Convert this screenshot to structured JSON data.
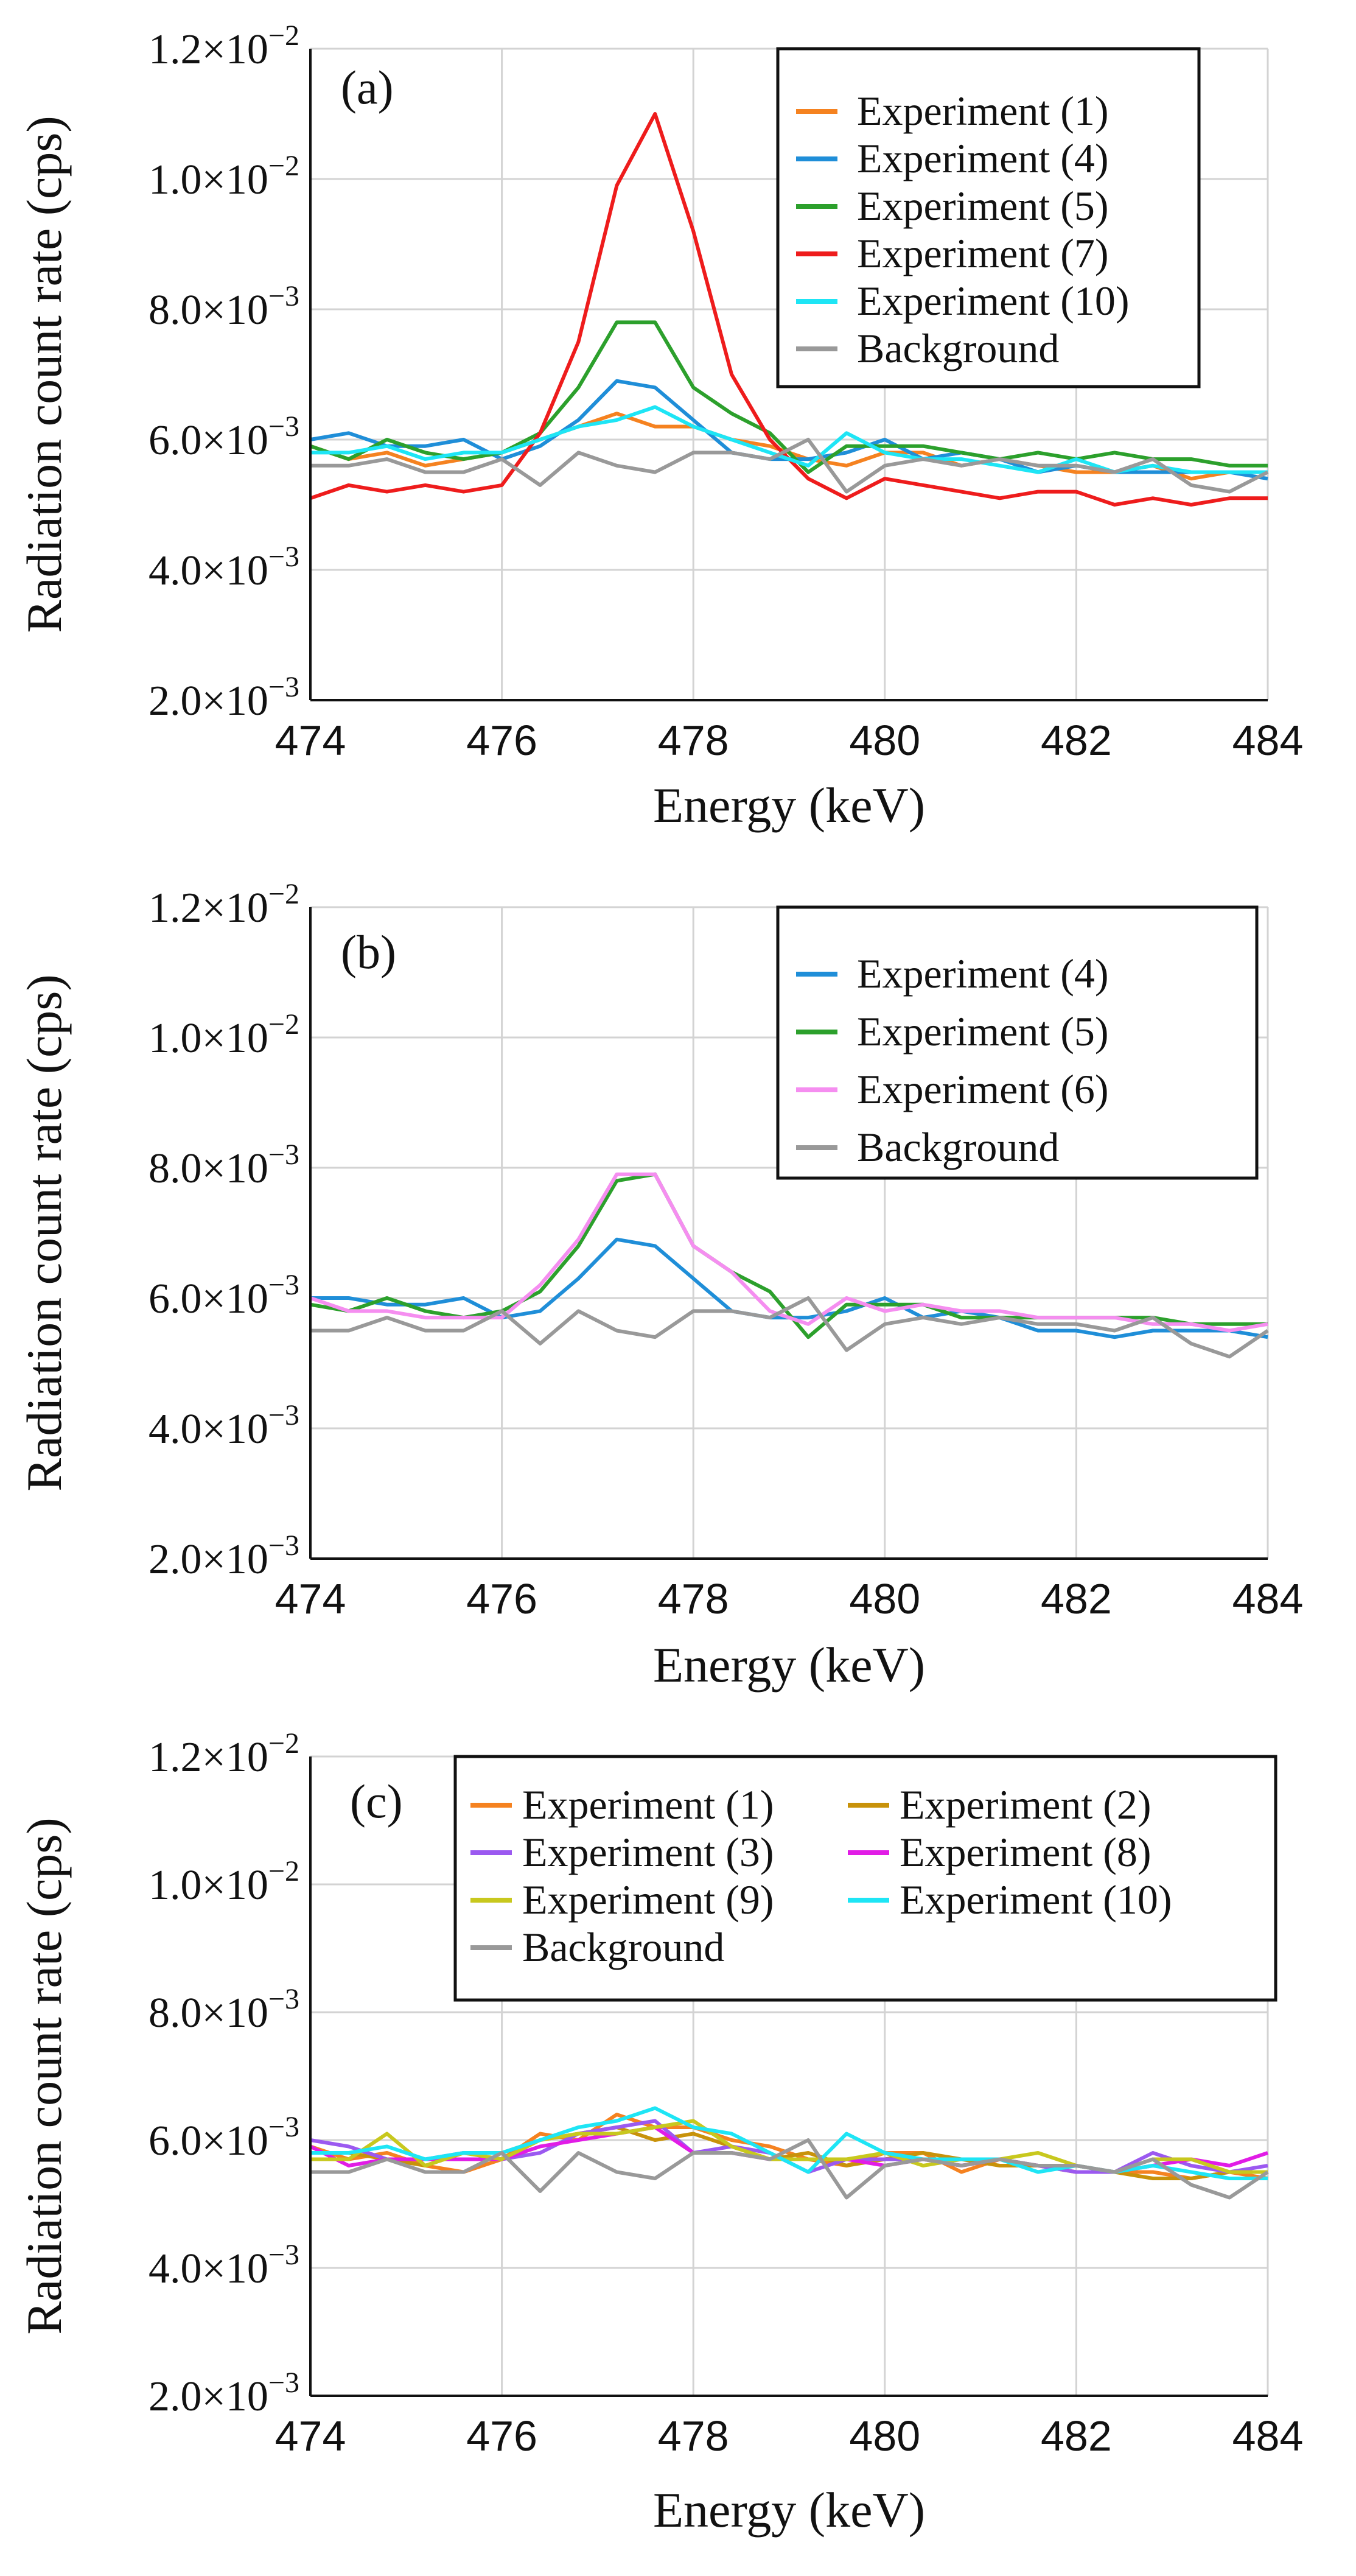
{
  "chart_data": [
    {
      "type": "line",
      "panel_label": "(a)",
      "xlabel": "Energy (keV)",
      "ylabel": "Radiation count rate (cps)",
      "xlim": [
        474,
        484
      ],
      "ylim": [
        0.002,
        0.012
      ],
      "xticks": [
        "474",
        "476",
        "478",
        "480",
        "482",
        "484"
      ],
      "yticks": [
        {
          "mant": "2.0×10",
          "exp": "−3"
        },
        {
          "mant": "4.0×10",
          "exp": "−3"
        },
        {
          "mant": "6.0×10",
          "exp": "−3"
        },
        {
          "mant": "8.0×10",
          "exp": "−3"
        },
        {
          "mant": "1.0×10",
          "exp": "−2"
        },
        {
          "mant": "1.2×10",
          "exp": "−2"
        }
      ],
      "grid": true,
      "legend_columns": 1,
      "x": [
        474.0,
        474.4,
        474.8,
        475.2,
        475.6,
        476.0,
        476.4,
        476.8,
        477.2,
        477.6,
        478.0,
        478.4,
        478.8,
        479.2,
        479.6,
        480.0,
        480.4,
        480.8,
        481.2,
        481.6,
        482.0,
        482.4,
        482.8,
        483.2,
        483.6,
        484.0
      ],
      "series": [
        {
          "name": "Experiment (1)",
          "color": "#f58220",
          "values": [
            0.0059,
            0.0057,
            0.0058,
            0.0056,
            0.0057,
            0.0058,
            0.006,
            0.0062,
            0.0064,
            0.0062,
            0.0062,
            0.006,
            0.0059,
            0.0057,
            0.0056,
            0.0058,
            0.0058,
            0.0056,
            0.0057,
            0.0056,
            0.0055,
            0.0055,
            0.0056,
            0.0054,
            0.0055,
            0.0055
          ]
        },
        {
          "name": "Experiment (4)",
          "color": "#1f8ed8",
          "values": [
            0.006,
            0.0061,
            0.0059,
            0.0059,
            0.006,
            0.0057,
            0.0059,
            0.0063,
            0.0069,
            0.0068,
            0.0063,
            0.0058,
            0.0057,
            0.0057,
            0.0058,
            0.006,
            0.0057,
            0.0058,
            0.0057,
            0.0055,
            0.0056,
            0.0055,
            0.0055,
            0.0055,
            0.0055,
            0.0054
          ]
        },
        {
          "name": "Experiment (5)",
          "color": "#2ca02c",
          "values": [
            0.0059,
            0.0057,
            0.006,
            0.0058,
            0.0057,
            0.0058,
            0.0061,
            0.0068,
            0.0078,
            0.0078,
            0.0068,
            0.0064,
            0.0061,
            0.0055,
            0.0059,
            0.0059,
            0.0059,
            0.0058,
            0.0057,
            0.0058,
            0.0057,
            0.0058,
            0.0057,
            0.0057,
            0.0056,
            0.0056
          ]
        },
        {
          "name": "Experiment (7)",
          "color": "#ee1c1c",
          "values": [
            0.0051,
            0.0053,
            0.0052,
            0.0053,
            0.0052,
            0.0053,
            0.0061,
            0.0075,
            0.0099,
            0.011,
            0.0092,
            0.007,
            0.006,
            0.0054,
            0.0051,
            0.0054,
            0.0053,
            0.0052,
            0.0051,
            0.0052,
            0.0052,
            0.005,
            0.0051,
            0.005,
            0.0051,
            0.0051
          ]
        },
        {
          "name": "Experiment (10)",
          "color": "#1ee5f5",
          "values": [
            0.0058,
            0.0058,
            0.0059,
            0.0057,
            0.0058,
            0.0058,
            0.006,
            0.0062,
            0.0063,
            0.0065,
            0.0062,
            0.006,
            0.0058,
            0.0056,
            0.0061,
            0.0058,
            0.0057,
            0.0057,
            0.0056,
            0.0055,
            0.0057,
            0.0055,
            0.0056,
            0.0055,
            0.0055,
            0.0055
          ]
        },
        {
          "name": "Background",
          "color": "#999999",
          "values": [
            0.0056,
            0.0056,
            0.0057,
            0.0055,
            0.0055,
            0.0057,
            0.0053,
            0.0058,
            0.0056,
            0.0055,
            0.0058,
            0.0058,
            0.0057,
            0.006,
            0.0052,
            0.0056,
            0.0057,
            0.0056,
            0.0057,
            0.0056,
            0.0056,
            0.0055,
            0.0057,
            0.0053,
            0.0052,
            0.0055
          ]
        }
      ]
    },
    {
      "type": "line",
      "panel_label": "(b)",
      "xlabel": "Energy (keV)",
      "ylabel": "Radiation count rate (cps)",
      "xlim": [
        474,
        484
      ],
      "ylim": [
        0.002,
        0.012
      ],
      "xticks": [
        "474",
        "476",
        "478",
        "480",
        "482",
        "484"
      ],
      "yticks": [
        {
          "mant": "2.0×10",
          "exp": "−3"
        },
        {
          "mant": "4.0×10",
          "exp": "−3"
        },
        {
          "mant": "6.0×10",
          "exp": "−3"
        },
        {
          "mant": "8.0×10",
          "exp": "−3"
        },
        {
          "mant": "1.0×10",
          "exp": "−2"
        },
        {
          "mant": "1.2×10",
          "exp": "−2"
        }
      ],
      "grid": true,
      "legend_columns": 1,
      "x": [
        474.0,
        474.4,
        474.8,
        475.2,
        475.6,
        476.0,
        476.4,
        476.8,
        477.2,
        477.6,
        478.0,
        478.4,
        478.8,
        479.2,
        479.6,
        480.0,
        480.4,
        480.8,
        481.2,
        481.6,
        482.0,
        482.4,
        482.8,
        483.2,
        483.6,
        484.0
      ],
      "series": [
        {
          "name": "Experiment (4)",
          "color": "#1f8ed8",
          "values": [
            0.006,
            0.006,
            0.0059,
            0.0059,
            0.006,
            0.0057,
            0.0058,
            0.0063,
            0.0069,
            0.0068,
            0.0063,
            0.0058,
            0.0057,
            0.0057,
            0.0058,
            0.006,
            0.0057,
            0.0058,
            0.0057,
            0.0055,
            0.0055,
            0.0054,
            0.0055,
            0.0055,
            0.0055,
            0.0054
          ]
        },
        {
          "name": "Experiment (5)",
          "color": "#2ca02c",
          "values": [
            0.0059,
            0.0058,
            0.006,
            0.0058,
            0.0057,
            0.0058,
            0.0061,
            0.0068,
            0.0078,
            0.0079,
            0.0068,
            0.0064,
            0.0061,
            0.0054,
            0.0059,
            0.0059,
            0.0059,
            0.0057,
            0.0057,
            0.0057,
            0.0057,
            0.0057,
            0.0057,
            0.0056,
            0.0056,
            0.0056
          ]
        },
        {
          "name": "Experiment (6)",
          "color": "#f58ef0",
          "values": [
            0.006,
            0.0058,
            0.0058,
            0.0057,
            0.0057,
            0.0057,
            0.0062,
            0.0069,
            0.0079,
            0.0079,
            0.0068,
            0.0064,
            0.0058,
            0.0056,
            0.006,
            0.0058,
            0.0059,
            0.0058,
            0.0058,
            0.0057,
            0.0057,
            0.0057,
            0.0056,
            0.0056,
            0.0055,
            0.0056
          ]
        },
        {
          "name": "Background",
          "color": "#999999",
          "values": [
            0.0055,
            0.0055,
            0.0057,
            0.0055,
            0.0055,
            0.0058,
            0.0053,
            0.0058,
            0.0055,
            0.0054,
            0.0058,
            0.0058,
            0.0057,
            0.006,
            0.0052,
            0.0056,
            0.0057,
            0.0056,
            0.0057,
            0.0056,
            0.0056,
            0.0055,
            0.0057,
            0.0053,
            0.0051,
            0.0055
          ]
        }
      ]
    },
    {
      "type": "line",
      "panel_label": "(c)",
      "xlabel": "Energy (keV)",
      "ylabel": "Radiation count rate (cps)",
      "xlim": [
        474,
        484
      ],
      "ylim": [
        0.002,
        0.012
      ],
      "xticks": [
        "474",
        "476",
        "478",
        "480",
        "482",
        "484"
      ],
      "yticks": [
        {
          "mant": "2.0×10",
          "exp": "−3"
        },
        {
          "mant": "4.0×10",
          "exp": "−3"
        },
        {
          "mant": "6.0×10",
          "exp": "−3"
        },
        {
          "mant": "8.0×10",
          "exp": "−3"
        },
        {
          "mant": "1.0×10",
          "exp": "−2"
        },
        {
          "mant": "1.2×10",
          "exp": "−2"
        }
      ],
      "grid": true,
      "legend_columns": 2,
      "x": [
        474.0,
        474.4,
        474.8,
        475.2,
        475.6,
        476.0,
        476.4,
        476.8,
        477.2,
        477.6,
        478.0,
        478.4,
        478.8,
        479.2,
        479.6,
        480.0,
        480.4,
        480.8,
        481.2,
        481.6,
        482.0,
        482.4,
        482.8,
        483.2,
        483.6,
        484.0
      ],
      "series": [
        {
          "name": "Experiment (1)",
          "color": "#f58220",
          "values": [
            0.0059,
            0.0057,
            0.0058,
            0.0056,
            0.0055,
            0.0057,
            0.0061,
            0.006,
            0.0064,
            0.0062,
            0.0062,
            0.006,
            0.0059,
            0.0057,
            0.0056,
            0.0058,
            0.0058,
            0.0055,
            0.0057,
            0.0056,
            0.0055,
            0.0055,
            0.0055,
            0.0054,
            0.0055,
            0.0054
          ]
        },
        {
          "name": "Experiment (2)",
          "color": "#c8920a",
          "values": [
            0.0058,
            0.0058,
            0.0057,
            0.0056,
            0.0058,
            0.0058,
            0.006,
            0.0061,
            0.0062,
            0.006,
            0.0061,
            0.0059,
            0.0057,
            0.0058,
            0.0056,
            0.0057,
            0.0058,
            0.0057,
            0.0056,
            0.0056,
            0.0056,
            0.0055,
            0.0054,
            0.0054,
            0.0055,
            0.0055
          ]
        },
        {
          "name": "Experiment (3)",
          "color": "#9b59f0",
          "values": [
            0.006,
            0.0059,
            0.0057,
            0.0057,
            0.0058,
            0.0057,
            0.0058,
            0.0061,
            0.0062,
            0.0063,
            0.0058,
            0.0059,
            0.0058,
            0.0055,
            0.0057,
            0.0057,
            0.0057,
            0.0056,
            0.0057,
            0.0056,
            0.0055,
            0.0055,
            0.0058,
            0.0056,
            0.0055,
            0.0056
          ]
        },
        {
          "name": "Experiment (8)",
          "color": "#e11ce6",
          "values": [
            0.0059,
            0.0056,
            0.0057,
            0.0057,
            0.0057,
            0.0057,
            0.0059,
            0.006,
            0.0061,
            0.0062,
            0.0058,
            0.0058,
            0.0057,
            0.0057,
            0.0057,
            0.0056,
            0.0057,
            0.0056,
            0.0057,
            0.0056,
            0.0056,
            0.0055,
            0.0056,
            0.0057,
            0.0056,
            0.0058
          ]
        },
        {
          "name": "Experiment (9)",
          "color": "#c8c81e",
          "values": [
            0.0057,
            0.0057,
            0.0061,
            0.0056,
            0.0058,
            0.0057,
            0.006,
            0.0061,
            0.0061,
            0.0062,
            0.0063,
            0.0059,
            0.0057,
            0.0057,
            0.0057,
            0.0058,
            0.0056,
            0.0057,
            0.0057,
            0.0058,
            0.0056,
            0.0055,
            0.0057,
            0.0057,
            0.0055,
            0.0055
          ]
        },
        {
          "name": "Experiment (10)",
          "color": "#1ee5f5",
          "values": [
            0.0058,
            0.0058,
            0.0059,
            0.0057,
            0.0058,
            0.0058,
            0.006,
            0.0062,
            0.0063,
            0.0065,
            0.0062,
            0.0061,
            0.0058,
            0.0055,
            0.0061,
            0.0058,
            0.0057,
            0.0057,
            0.0057,
            0.0055,
            0.0056,
            0.0055,
            0.0056,
            0.0055,
            0.0054,
            0.0054
          ]
        },
        {
          "name": "Background",
          "color": "#999999",
          "values": [
            0.0055,
            0.0055,
            0.0057,
            0.0055,
            0.0055,
            0.0058,
            0.0052,
            0.0058,
            0.0055,
            0.0054,
            0.0058,
            0.0058,
            0.0057,
            0.006,
            0.0051,
            0.0056,
            0.0057,
            0.0056,
            0.0057,
            0.0056,
            0.0056,
            0.0055,
            0.0057,
            0.0053,
            0.0051,
            0.0055
          ]
        }
      ]
    }
  ]
}
